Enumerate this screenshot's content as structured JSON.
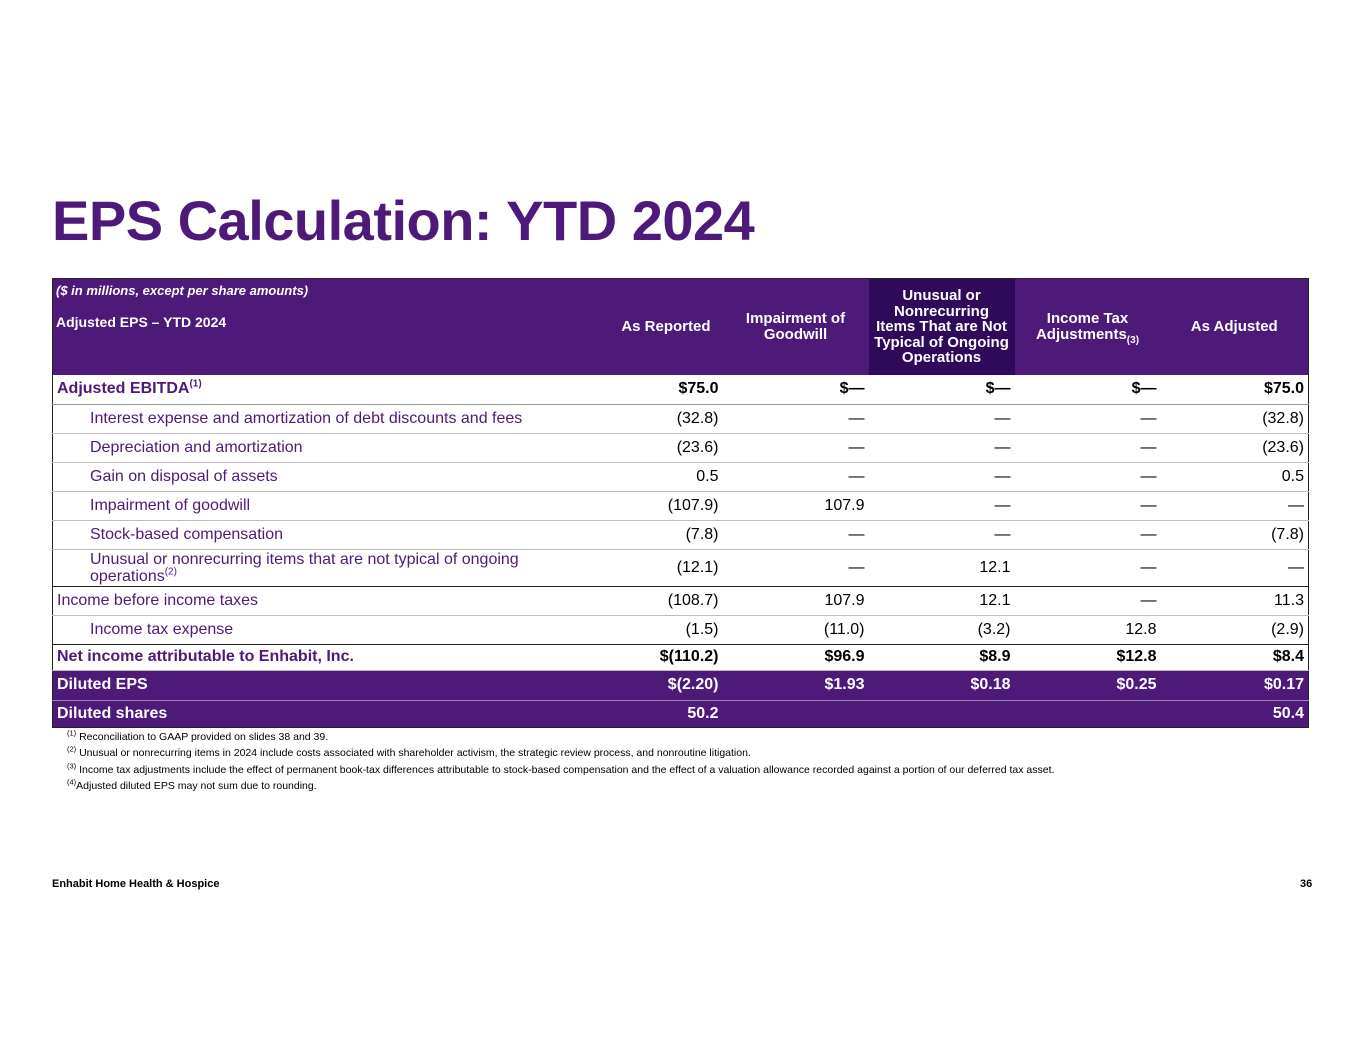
{
  "title": "EPS Calculation: YTD 2024",
  "colors": {
    "brand_purple": "#4e1a7a",
    "highlight_purple": "#2f0a5a"
  },
  "table": {
    "units_note": "($ in millions, except per share amounts)",
    "subtitle": "Adjusted EPS – YTD 2024",
    "columns": {
      "as_reported": "As Reported",
      "impairment": "Impairment of Goodwill",
      "unusual": "Unusual or Nonrecurring Items That are Not Typical of Ongoing Operations",
      "income_tax": "Income Tax Adjustments",
      "income_tax_sup": "(3)",
      "as_adjusted": "As Adjusted"
    },
    "rows": [
      {
        "label": "Adjusted EBITDA",
        "sup": "(1)",
        "values": [
          "$75.0",
          "$—",
          "$—",
          "$—",
          "$75.0"
        ]
      },
      {
        "label": "Interest expense and amortization of debt discounts and fees",
        "values": [
          "(32.8)",
          "—",
          "—",
          "—",
          "(32.8)"
        ]
      },
      {
        "label": "Depreciation and amortization",
        "values": [
          "(23.6)",
          "—",
          "—",
          "—",
          "(23.6)"
        ]
      },
      {
        "label": "Gain on disposal of assets",
        "values": [
          "0.5",
          "—",
          "—",
          "—",
          "0.5"
        ]
      },
      {
        "label": "Impairment of goodwill",
        "values": [
          "(107.9)",
          "107.9",
          "—",
          "—",
          "—"
        ]
      },
      {
        "label": "Stock-based compensation",
        "values": [
          "(7.8)",
          "—",
          "—",
          "—",
          "(7.8)"
        ]
      },
      {
        "label": "Unusual or nonrecurring items that are not typical of ongoing operations",
        "sup": "(2)",
        "values": [
          "(12.1)",
          "—",
          "12.1",
          "—",
          "—"
        ]
      },
      {
        "label": "Income before income taxes",
        "values": [
          "(108.7)",
          "107.9",
          "12.1",
          "—",
          "11.3"
        ]
      },
      {
        "label": "Income tax expense",
        "values": [
          "(1.5)",
          "(11.0)",
          "(3.2)",
          "12.8",
          "(2.9)"
        ]
      },
      {
        "label": "Net income attributable to Enhabit, Inc.",
        "values": [
          "$(110.2)",
          "$96.9",
          "$8.9",
          "$12.8",
          "$8.4"
        ]
      },
      {
        "label": "Diluted EPS",
        "values": [
          "$(2.20)",
          "$1.93",
          "$0.18",
          "$0.25",
          "$0.17"
        ]
      },
      {
        "label": "Diluted shares",
        "values": [
          "50.2",
          "",
          "",
          "",
          "50.4"
        ]
      }
    ]
  },
  "footnotes": [
    {
      "mark": "(1)",
      "text": " Reconciliation to GAAP provided on slides 38 and 39."
    },
    {
      "mark": "(2)",
      "text": " Unusual or nonrecurring items in 2024 include costs associated with shareholder activism, the strategic review process, and nonroutine litigation."
    },
    {
      "mark": "(3)",
      "text": " Income tax adjustments include the effect of permanent book-tax differences attributable to stock-based compensation and the effect of a valuation allowance recorded against a portion of our deferred tax asset."
    },
    {
      "mark": "(4)",
      "text": "Adjusted diluted EPS may not sum due to rounding."
    }
  ],
  "footer": {
    "brand": "Enhabit Home Health & Hospice",
    "page_number": "36"
  }
}
